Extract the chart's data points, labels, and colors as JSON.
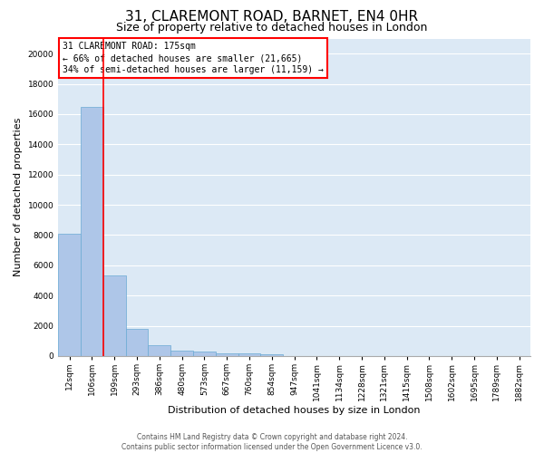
{
  "title1": "31, CLAREMONT ROAD, BARNET, EN4 0HR",
  "title2": "Size of property relative to detached houses in London",
  "xlabel": "Distribution of detached houses by size in London",
  "ylabel": "Number of detached properties",
  "categories": [
    "12sqm",
    "106sqm",
    "199sqm",
    "293sqm",
    "386sqm",
    "480sqm",
    "573sqm",
    "667sqm",
    "760sqm",
    "854sqm",
    "947sqm",
    "1041sqm",
    "1134sqm",
    "1228sqm",
    "1321sqm",
    "1415sqm",
    "1508sqm",
    "1602sqm",
    "1695sqm",
    "1789sqm",
    "1882sqm"
  ],
  "values": [
    8100,
    16500,
    5300,
    1800,
    700,
    350,
    280,
    200,
    200,
    130,
    0,
    0,
    0,
    0,
    0,
    0,
    0,
    0,
    0,
    0,
    0
  ],
  "bar_color": "#aec6e8",
  "bar_edge_color": "#6aaad4",
  "annotation_text_line1": "31 CLAREMONT ROAD: 175sqm",
  "annotation_text_line2": "← 66% of detached houses are smaller (21,665)",
  "annotation_text_line3": "34% of semi-detached houses are larger (11,159) →",
  "annotation_box_color": "white",
  "annotation_border_color": "red",
  "vline_color": "red",
  "ylim": [
    0,
    21000
  ],
  "yticks": [
    0,
    2000,
    4000,
    6000,
    8000,
    10000,
    12000,
    14000,
    16000,
    18000,
    20000
  ],
  "background_color": "#dce9f5",
  "footer_line1": "Contains HM Land Registry data © Crown copyright and database right 2024.",
  "footer_line2": "Contains public sector information licensed under the Open Government Licence v3.0.",
  "title1_fontsize": 11,
  "title2_fontsize": 9,
  "xlabel_fontsize": 8,
  "ylabel_fontsize": 8,
  "tick_fontsize": 6.5,
  "annotation_fontsize": 7
}
